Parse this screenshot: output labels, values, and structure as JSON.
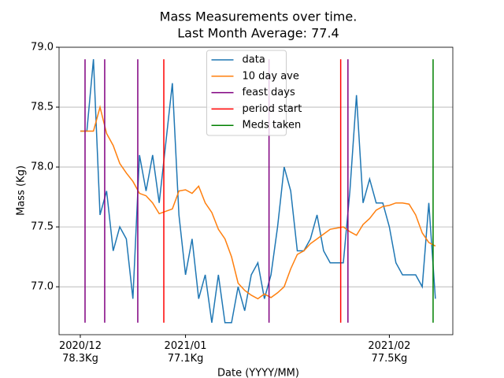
{
  "chart_data": {
    "type": "line",
    "title": "Mass Measurements over time.",
    "subtitle": "Last Month Average: 77.4",
    "x_label": "Date (YYYY/MM)",
    "y_label": "Mass (Kg)",
    "x": [
      0,
      1,
      2,
      3,
      4,
      5,
      6,
      7,
      8,
      9,
      10,
      11,
      12,
      13,
      14,
      15,
      16,
      17,
      18,
      19,
      20,
      21,
      22,
      23,
      24,
      25,
      26,
      27,
      28,
      29,
      30,
      31,
      32,
      33,
      34,
      35,
      36,
      37,
      38,
      39,
      40,
      41,
      42,
      43,
      44,
      45,
      46,
      47,
      48,
      49,
      50,
      51,
      52,
      53,
      54
    ],
    "series": [
      {
        "name": "data",
        "color": "#1f77b4",
        "values": [
          78.3,
          78.3,
          78.9,
          77.6,
          77.8,
          77.3,
          77.5,
          77.4,
          76.9,
          78.1,
          77.8,
          78.1,
          77.7,
          78.2,
          78.7,
          77.6,
          77.1,
          77.4,
          76.9,
          77.1,
          76.7,
          77.1,
          76.7,
          76.7,
          77.0,
          76.8,
          77.1,
          77.2,
          76.9,
          77.1,
          77.5,
          78.0,
          77.8,
          77.3,
          77.3,
          77.4,
          77.6,
          77.3,
          77.2,
          77.2,
          77.2,
          77.8,
          78.6,
          77.7,
          77.9,
          77.7,
          77.7,
          77.5,
          77.2,
          77.1,
          77.1,
          77.1,
          77.0,
          77.7,
          76.9
        ]
      },
      {
        "name": "10 day ave",
        "color": "#ff7f0e",
        "values": [
          78.3,
          78.3,
          78.3,
          78.5,
          78.28,
          78.18,
          78.03,
          77.95,
          77.88,
          77.78,
          77.76,
          77.7,
          77.61,
          77.63,
          77.65,
          77.8,
          77.81,
          77.78,
          77.84,
          77.7,
          77.62,
          77.48,
          77.4,
          77.25,
          77.03,
          76.97,
          76.93,
          76.9,
          76.94,
          76.91,
          76.95,
          77.0,
          77.15,
          77.27,
          77.3,
          77.36,
          77.4,
          77.44,
          77.48,
          77.49,
          77.5,
          77.46,
          77.43,
          77.52,
          77.57,
          77.64,
          77.67,
          77.68,
          77.7,
          77.7,
          77.69,
          77.6,
          77.45,
          77.37,
          77.34
        ]
      },
      {
        "name": "feast days",
        "color": "#800080",
        "kind": "vlines",
        "x": [
          0.72,
          3.71,
          8.74,
          28.7,
          40.7
        ],
        "ymin": 76.7,
        "ymax": 78.9
      },
      {
        "name": "period start",
        "color": "#ff0000",
        "kind": "vlines",
        "x": [
          12.7,
          39.6
        ],
        "ymin": 76.7,
        "ymax": 78.9
      },
      {
        "name": "Meds taken",
        "color": "#008000",
        "kind": "vlines",
        "x": [
          53.65
        ],
        "ymin": 76.7,
        "ymax": 78.9
      }
    ],
    "xlim": [
      -3.23,
      56.65
    ],
    "ylim": [
      76.6,
      79.0
    ],
    "xticks": [
      {
        "value": 0,
        "label": "2020/12\n78.3Kg"
      },
      {
        "value": 16,
        "label": "2021/01\n77.1Kg"
      },
      {
        "value": 47,
        "label": "2021/02\n77.5Kg"
      }
    ],
    "yticks": [
      {
        "value": 77.0,
        "label": "77.0"
      },
      {
        "value": 77.5,
        "label": "77.5"
      },
      {
        "value": 78.0,
        "label": "78.0"
      },
      {
        "value": 78.5,
        "label": "78.5"
      },
      {
        "value": 79.0,
        "label": "79.0"
      }
    ],
    "grid": "y",
    "legend": "upper center"
  }
}
